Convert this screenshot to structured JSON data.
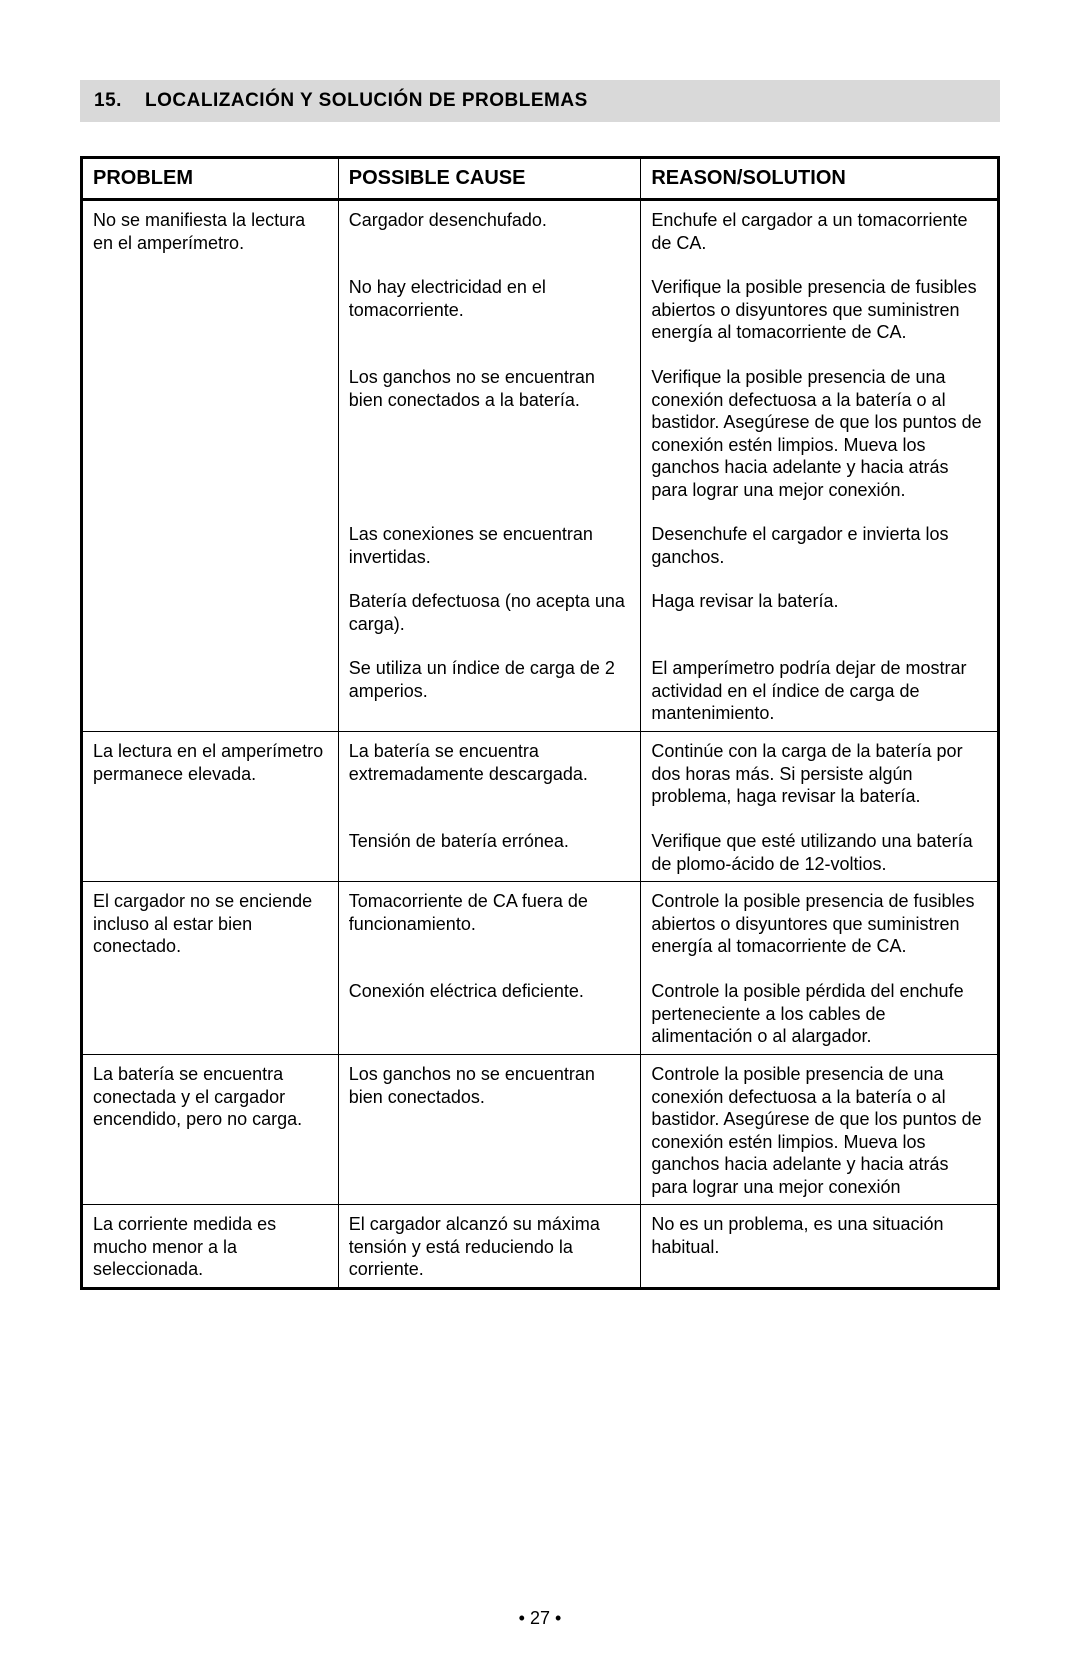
{
  "section": {
    "number": "15.",
    "title": "LOCALIZACIÓN Y SOLUCIÓN DE PROBLEMAS"
  },
  "table": {
    "headers": {
      "problem": "PROBLEM",
      "cause": "POSSIBLE CAUSE",
      "solution": "REASON/SOLUTION"
    },
    "groups": [
      {
        "problem": "No se manifiesta la lectura en el amperímetro.",
        "pairs": [
          {
            "cause": "Cargador desenchufado.",
            "solution": "Enchufe el cargador a un tomacorriente de CA."
          },
          {
            "cause": "No hay electricidad en el tomacorriente.",
            "solution": "Verifique la posible presencia de fusibles abiertos o disyuntores que suministren energía al tomacorriente de CA."
          },
          {
            "cause": "Los ganchos no se encuentran bien conectados a la batería.",
            "solution": "Verifique la posible presencia de una conexión defectuosa a la batería o al bastidor. Asegúrese de que los puntos de conexión estén limpios. Mueva los ganchos hacia adelante y hacia atrás para lograr una mejor conexión."
          },
          {
            "cause": "Las conexiones se encuentran invertidas.",
            "solution": "Desenchufe el cargador e invierta los ganchos."
          },
          {
            "cause": "Batería defectuosa (no acepta una carga).",
            "solution": "Haga revisar la batería."
          },
          {
            "cause": "Se utiliza un índice de carga de 2 amperios.",
            "solution": "El amperímetro podría dejar de mostrar actividad en el índice de carga de mantenimiento."
          }
        ]
      },
      {
        "problem": "La lectura en el amperímetro permanece elevada.",
        "pairs": [
          {
            "cause": "La batería se encuentra extremadamente descargada.",
            "solution": "Continúe con la carga de la batería por dos horas más. Si persiste algún problema, haga revisar la batería."
          },
          {
            "cause": "Tensión de batería errónea.",
            "solution": "Verifique que esté utilizando una batería de plomo-ácido de 12-voltios."
          }
        ]
      },
      {
        "problem": "El cargador no se enciende incluso al estar bien conectado.",
        "pairs": [
          {
            "cause": "Tomacorriente de CA  fuera de funcionamiento.",
            "solution": "Controle la posible presencia de fusibles abiertos o disyuntores que suministren energía al tomacorriente de CA."
          },
          {
            "cause": "Conexión eléctrica deficiente.",
            "solution": "Controle la posible pérdida del enchufe perteneciente a los cables de alimentación o al  alargador."
          }
        ]
      },
      {
        "problem": "La batería se encuentra conectada y el cargador encendido, pero no carga.",
        "pairs": [
          {
            "cause": "Los ganchos no se encuentran bien conectados.",
            "solution": "Controle la posible presencia de una conexión defectuosa a la batería o al bastidor. Asegúrese de que los puntos de conexión estén limpios. Mueva los ganchos hacia adelante y hacia atrás para lograr una mejor conexión"
          }
        ]
      },
      {
        "problem": "La corriente medida es mucho menor a  la seleccionada.",
        "pairs": [
          {
            "cause": "El cargador alcanzó su máxima tensión y está reduciendo la corriente.",
            "solution": "No es un problema, es una situación habitual."
          }
        ]
      }
    ]
  },
  "page_number": "• 27 •",
  "style": {
    "background": "#ffffff",
    "header_bg": "#d9d9d9",
    "border_color": "#000000",
    "font_family": "Arial, Helvetica, sans-serif",
    "header_fontsize_pt": 14,
    "body_fontsize_pt": 13
  }
}
